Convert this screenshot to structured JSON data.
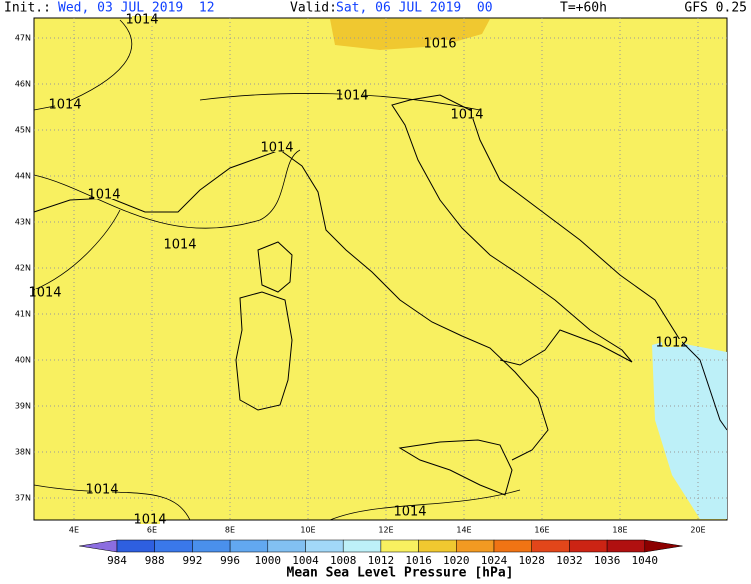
{
  "header": {
    "init_label": "Init.:",
    "init": "Wed, 03 JUL 2019  12",
    "valid_label": "Valid:",
    "valid": "Sat, 06 JUL 2019  00",
    "lead": "T=+60h",
    "model": "GFS 0.25"
  },
  "map": {
    "lat_labels": [
      "47N",
      "46N",
      "45N",
      "44N",
      "43N",
      "42N",
      "41N",
      "40N",
      "39N",
      "38N",
      "37N"
    ],
    "lon_labels": [
      "4E",
      "6E",
      "8E",
      "10E",
      "12E",
      "14E",
      "16E",
      "18E",
      "20E"
    ],
    "isobar_labels": [
      "1014",
      "1016",
      "1014",
      "1014",
      "1014",
      "1014",
      "1014",
      "1014",
      "1014",
      "1012",
      "1014",
      "1014",
      "1014"
    ]
  },
  "colorbar": {
    "title": "Mean Sea Level Pressure [hPa]",
    "levels": [
      984,
      988,
      992,
      996,
      1000,
      1004,
      1008,
      1012,
      1016,
      1020,
      1024,
      1028,
      1032,
      1036,
      1040
    ],
    "colors": [
      "#8c6ee0",
      "#2e5fe0",
      "#3a78ea",
      "#4a90ec",
      "#62a8f0",
      "#82c0f2",
      "#a2d8f8",
      "#bdf0f8",
      "#f8f060",
      "#f0c830",
      "#f29a22",
      "#f07414",
      "#e2461a",
      "#cc2414",
      "#b01010",
      "#8c0000"
    ]
  }
}
